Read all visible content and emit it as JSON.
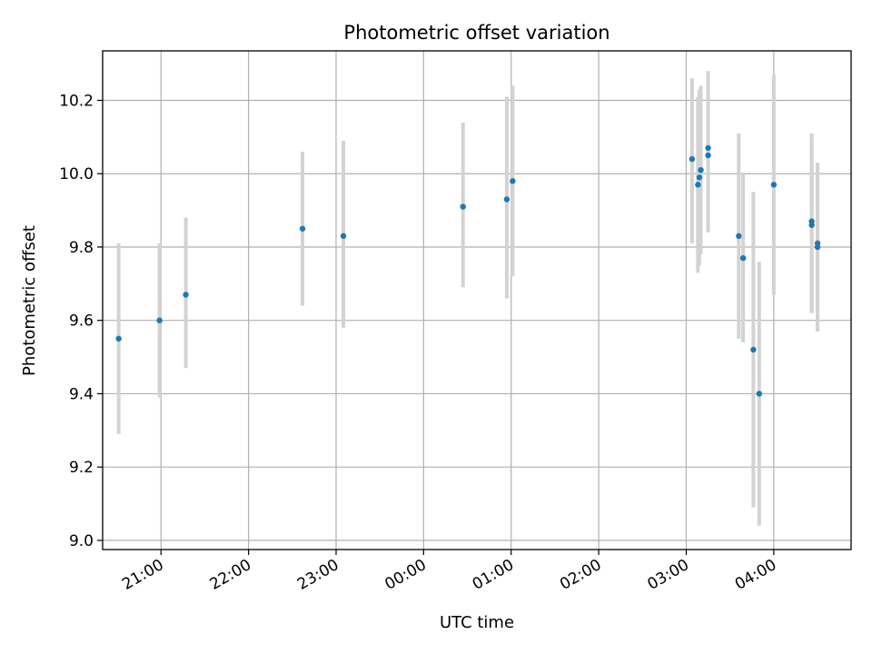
{
  "chart_data": {
    "type": "scatter",
    "title": "Photometric offset variation",
    "xlabel": "UTC time",
    "ylabel": "Photometric offset",
    "x_axis_kind": "time",
    "x_start_date": "",
    "xlim": [
      "20:20",
      "04:53"
    ],
    "ylim": [
      8.975,
      10.335
    ],
    "grid": true,
    "legend": "none",
    "x_ticks": [
      "21:00",
      "22:00",
      "23:00",
      "00:00",
      "01:00",
      "02:00",
      "03:00",
      "04:00"
    ],
    "y_ticks": [
      "9.0",
      "9.2",
      "9.4",
      "9.6",
      "9.8",
      "10.0",
      "10.2"
    ],
    "colors": {
      "point": "#1f77b4",
      "errorbar": "#d3d3d3",
      "grid": "#b0b0b0"
    },
    "series": [
      {
        "points": [
          {
            "x": "20:31",
            "y": 9.55,
            "low": 9.29,
            "high": 9.81
          },
          {
            "x": "20:59",
            "y": 9.6,
            "low": 9.39,
            "high": 9.81
          },
          {
            "x": "21:17",
            "y": 9.67,
            "low": 9.47,
            "high": 9.88
          },
          {
            "x": "22:37",
            "y": 9.85,
            "low": 9.64,
            "high": 10.06
          },
          {
            "x": "23:05",
            "y": 9.83,
            "low": 9.58,
            "high": 10.09
          },
          {
            "x": "00:27",
            "y": 9.91,
            "low": 9.69,
            "high": 10.14
          },
          {
            "x": "00:57",
            "y": 9.93,
            "low": 9.66,
            "high": 10.21
          },
          {
            "x": "01:01",
            "y": 9.98,
            "low": 9.72,
            "high": 10.24
          },
          {
            "x": "03:04",
            "y": 10.04,
            "low": 9.81,
            "high": 10.26
          },
          {
            "x": "03:08",
            "y": 9.97,
            "low": 9.73,
            "high": 10.21
          },
          {
            "x": "03:09",
            "y": 9.99,
            "low": 9.75,
            "high": 10.23
          },
          {
            "x": "03:10",
            "y": 10.01,
            "low": 9.78,
            "high": 10.24
          },
          {
            "x": "03:15",
            "y": 10.05,
            "low": 9.84,
            "high": 10.27
          },
          {
            "x": "03:15",
            "y": 10.07,
            "low": 9.86,
            "high": 10.28
          },
          {
            "x": "03:36",
            "y": 9.83,
            "low": 9.55,
            "high": 10.11
          },
          {
            "x": "03:39",
            "y": 9.77,
            "low": 9.54,
            "high": 10.0
          },
          {
            "x": "03:46",
            "y": 9.52,
            "low": 9.09,
            "high": 9.95
          },
          {
            "x": "03:50",
            "y": 9.4,
            "low": 9.04,
            "high": 9.76
          },
          {
            "x": "04:00",
            "y": 9.97,
            "low": 9.67,
            "high": 10.27
          },
          {
            "x": "04:26",
            "y": 9.87,
            "low": 9.62,
            "high": 10.11
          },
          {
            "x": "04:26",
            "y": 9.86,
            "low": 9.62,
            "high": 10.1
          },
          {
            "x": "04:30",
            "y": 9.8,
            "low": 9.57,
            "high": 10.03
          },
          {
            "x": "04:30",
            "y": 9.81,
            "low": 9.57,
            "high": 10.03
          }
        ]
      }
    ]
  }
}
